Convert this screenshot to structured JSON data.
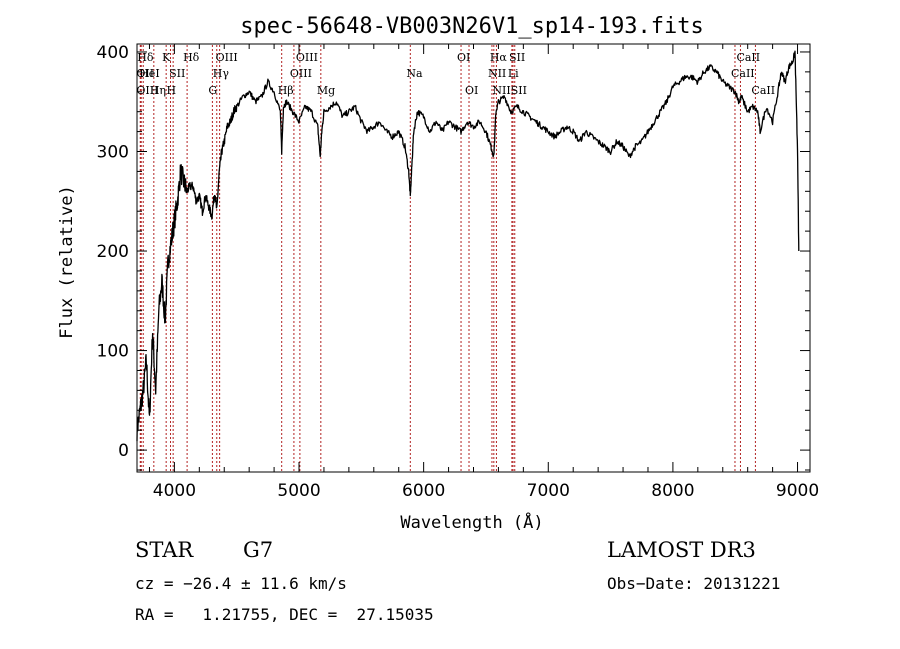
{
  "chart_data": {
    "type": "line",
    "title": "spec-56648-VB003N26V1_sp14-193.fits",
    "xlabel": "Wavelength (Å)",
    "ylabel": "Flux (relative)",
    "xlim": [
      3700,
      9100
    ],
    "ylim": [
      -22,
      408
    ],
    "xticks": [
      4000,
      5000,
      6000,
      7000,
      8000,
      9000
    ],
    "yticks": [
      0,
      100,
      200,
      300,
      400
    ],
    "grid": false,
    "legend": "none",
    "line_color": "#000000",
    "marker_color": "#b22222",
    "spectrum": {
      "x": [
        3700,
        3725,
        3750,
        3775,
        3800,
        3825,
        3850,
        3875,
        3900,
        3925,
        3950,
        3975,
        4000,
        4025,
        4050,
        4075,
        4100,
        4125,
        4150,
        4175,
        4200,
        4225,
        4250,
        4275,
        4300,
        4325,
        4340,
        4360,
        4380,
        4400,
        4425,
        4450,
        4475,
        4500,
        4550,
        4600,
        4650,
        4700,
        4750,
        4800,
        4850,
        4861,
        4875,
        4900,
        4950,
        5000,
        5050,
        5100,
        5150,
        5170,
        5183,
        5200,
        5250,
        5300,
        5350,
        5400,
        5450,
        5500,
        5550,
        5600,
        5650,
        5700,
        5750,
        5800,
        5850,
        5880,
        5893,
        5905,
        5920,
        5950,
        6000,
        6050,
        6100,
        6150,
        6200,
        6250,
        6300,
        6350,
        6400,
        6450,
        6500,
        6540,
        6563,
        6580,
        6600,
        6650,
        6700,
        6750,
        6800,
        6850,
        6900,
        6950,
        7000,
        7050,
        7100,
        7150,
        7200,
        7250,
        7300,
        7350,
        7400,
        7450,
        7500,
        7550,
        7600,
        7650,
        7700,
        7750,
        7800,
        7850,
        7900,
        7950,
        8000,
        8050,
        8100,
        8150,
        8200,
        8250,
        8300,
        8350,
        8400,
        8450,
        8500,
        8530,
        8550,
        8600,
        8640,
        8680,
        8700,
        8750,
        8800,
        8850,
        8870,
        8900,
        8930,
        8960,
        8980,
        9000,
        9010
      ],
      "y": [
        20,
        40,
        60,
        90,
        30,
        120,
        60,
        140,
        170,
        130,
        190,
        210,
        230,
        250,
        280,
        270,
        260,
        265,
        265,
        250,
        255,
        240,
        255,
        245,
        235,
        260,
        240,
        280,
        300,
        310,
        325,
        330,
        340,
        345,
        355,
        360,
        350,
        355,
        370,
        360,
        340,
        300,
        345,
        350,
        340,
        330,
        345,
        340,
        325,
        295,
        320,
        340,
        345,
        350,
        335,
        340,
        345,
        330,
        320,
        325,
        330,
        320,
        315,
        320,
        305,
        280,
        255,
        285,
        320,
        340,
        335,
        320,
        330,
        320,
        330,
        325,
        320,
        330,
        325,
        330,
        320,
        305,
        295,
        340,
        350,
        355,
        340,
        345,
        340,
        335,
        330,
        325,
        320,
        315,
        320,
        325,
        320,
        310,
        320,
        315,
        310,
        305,
        300,
        310,
        305,
        295,
        305,
        310,
        320,
        330,
        340,
        350,
        365,
        370,
        375,
        375,
        370,
        380,
        385,
        380,
        370,
        365,
        360,
        350,
        355,
        340,
        345,
        340,
        320,
        345,
        330,
        365,
        380,
        370,
        385,
        390,
        400,
        300,
        200
      ]
    },
    "lines": [
      {
        "label": "Hδ",
        "x": 3734,
        "row": 0
      },
      {
        "label": "OII",
        "x": 3727,
        "row": 1
      },
      {
        "label": "OIII",
        "x": 3727,
        "row": 2
      },
      {
        "label": "HeI",
        "x": 3750,
        "row": 1
      },
      {
        "label": "Hη",
        "x": 3835,
        "row": 2
      },
      {
        "label": "K",
        "x": 3934,
        "row": 0
      },
      {
        "label": "SII",
        "x": 3990,
        "row": 1
      },
      {
        "label": "H",
        "x": 3969,
        "row": 2
      },
      {
        "label": "Hδ",
        "x": 4102,
        "row": 0
      },
      {
        "label": "OIII",
        "x": 4363,
        "row": 0
      },
      {
        "label": "Hγ",
        "x": 4340,
        "row": 1
      },
      {
        "label": "G",
        "x": 4305,
        "row": 2
      },
      {
        "label": "OIII",
        "x": 5007,
        "row": 0
      },
      {
        "label": "OIII",
        "x": 4959,
        "row": 1
      },
      {
        "label": "Hβ",
        "x": 4861,
        "row": 2
      },
      {
        "label": "Mg",
        "x": 5175,
        "row": 2
      },
      {
        "label": "Na",
        "x": 5893,
        "row": 1
      },
      {
        "label": "OI",
        "x": 6300,
        "row": 0
      },
      {
        "label": "OI",
        "x": 6364,
        "row": 2
      },
      {
        "label": "Hα",
        "x": 6563,
        "row": 0
      },
      {
        "label": "SII",
        "x": 6717,
        "row": 0
      },
      {
        "label": "NII",
        "x": 6548,
        "row": 1
      },
      {
        "label": "Li",
        "x": 6708,
        "row": 1
      },
      {
        "label": "NII",
        "x": 6584,
        "row": 2
      },
      {
        "label": "SII",
        "x": 6731,
        "row": 2
      },
      {
        "label": "CaII",
        "x": 8542,
        "row": 0
      },
      {
        "label": "CaII",
        "x": 8498,
        "row": 1
      },
      {
        "label": "CaII",
        "x": 8662,
        "row": 2
      }
    ]
  },
  "info": {
    "object_class": "STAR",
    "subclass": "G7",
    "survey": "LAMOST DR3",
    "redshift": "cz = −26.4 ± 11.6 km/s",
    "obs_date": "Obs−Date: 20131221",
    "coords": "RA =   1.21755, DEC =  27.15035"
  }
}
